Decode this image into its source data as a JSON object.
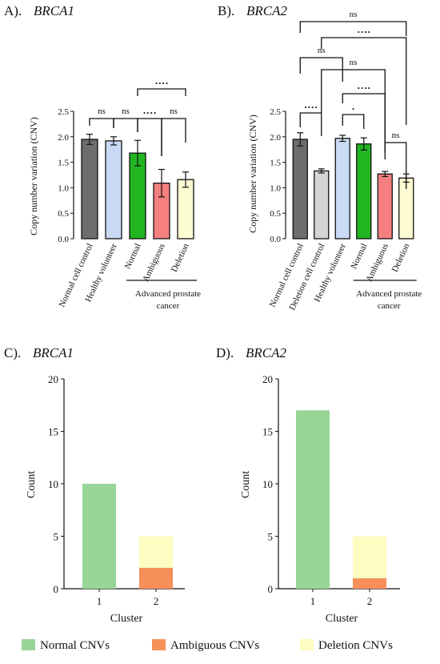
{
  "chart_data": [
    {
      "type": "bar",
      "panel": "A).",
      "gene": "BRCA1",
      "ylabel": "Copy number variation (CNV)",
      "ylim": [
        0,
        2.5
      ],
      "yticks": [
        "0.0",
        "0.5",
        "1.0",
        "1.5",
        "2.0",
        "2.5"
      ],
      "categories": [
        "Normal cell control",
        "Healthy volunteer",
        "Normal",
        "Ambiguous",
        "Deletion"
      ],
      "values": [
        1.95,
        1.92,
        1.68,
        1.09,
        1.16
      ],
      "errors": [
        0.1,
        0.08,
        0.25,
        0.27,
        0.15
      ],
      "colors": [
        "#6d6d6d",
        "#c9daf5",
        "#22b522",
        "#f57f7f",
        "#fdfbd1"
      ],
      "group_label": [
        "Advanced prostate",
        "cancer"
      ],
      "group_range": [
        2,
        4
      ],
      "annotations": [
        {
          "from": 0,
          "to": 1,
          "label": "ns"
        },
        {
          "from": 1,
          "to": 2,
          "label": "ns"
        },
        {
          "from": 2,
          "to": 3,
          "label": "····"
        },
        {
          "from": 3,
          "to": 4,
          "label": "ns"
        },
        {
          "from": 2,
          "to": 4,
          "label": "····"
        }
      ]
    },
    {
      "type": "bar",
      "panel": "B).",
      "gene": "BRCA2",
      "ylabel": "Copy number variation (CNV)",
      "ylim": [
        0,
        2.5
      ],
      "yticks": [
        "0.0",
        "0.5",
        "1.0",
        "1.5",
        "2.0",
        "2.5"
      ],
      "categories": [
        "Normal cell control",
        "Deletion cell control",
        "Healthy volunteer",
        "Normal",
        "Ambiguous",
        "Deletion"
      ],
      "values": [
        1.95,
        1.33,
        1.97,
        1.86,
        1.27,
        1.19
      ],
      "errors": [
        0.13,
        0.04,
        0.06,
        0.12,
        0.05,
        0.08
      ],
      "colors": [
        "#6d6d6d",
        "#d4d4d4",
        "#c9daf5",
        "#22b522",
        "#f57f7f",
        "#fdfbd1"
      ],
      "group_label": [
        "Advanced prostate",
        "cancer"
      ],
      "group_range": [
        3,
        5
      ],
      "annotations": [
        {
          "from": 0,
          "to": 1,
          "label": "····"
        },
        {
          "from": 2,
          "to": 3,
          "label": "·"
        },
        {
          "from": 4,
          "to": 5,
          "label": "ns"
        },
        {
          "from": 2,
          "to": 4,
          "label": "····"
        },
        {
          "from": 1,
          "to": 4,
          "label": "ns"
        },
        {
          "from": 0,
          "to": 2,
          "label": "ns"
        },
        {
          "from": 1,
          "to": 5,
          "label": "····"
        },
        {
          "from": 0,
          "to": 5,
          "label": "ns"
        }
      ]
    },
    {
      "type": "bar",
      "stacked": true,
      "panel": "C).",
      "gene": "BRCA1",
      "xlabel": "Cluster",
      "ylabel": "Count",
      "ylim": [
        0,
        20
      ],
      "yticks": [
        "0",
        "5",
        "10",
        "15",
        "20"
      ],
      "categories": [
        "1",
        "2"
      ],
      "series": [
        {
          "name": "Normal CNVs",
          "values": [
            10,
            0
          ],
          "color": "#98d596"
        },
        {
          "name": "Ambiguous CNVs",
          "values": [
            0,
            2
          ],
          "color": "#f7905a"
        },
        {
          "name": "Deletion CNVs",
          "values": [
            0,
            3
          ],
          "color": "#fdfcc1"
        }
      ]
    },
    {
      "type": "bar",
      "stacked": true,
      "panel": "D).",
      "gene": "BRCA2",
      "xlabel": "Cluster",
      "ylabel": "Count",
      "ylim": [
        0,
        20
      ],
      "yticks": [
        "0",
        "5",
        "10",
        "15",
        "20"
      ],
      "categories": [
        "1",
        "2"
      ],
      "series": [
        {
          "name": "Normal CNVs",
          "values": [
            17,
            0
          ],
          "color": "#98d596"
        },
        {
          "name": "Ambiguous CNVs",
          "values": [
            0,
            1
          ],
          "color": "#f7905a"
        },
        {
          "name": "Deletion CNVs",
          "values": [
            0,
            4
          ],
          "color": "#fdfcc1"
        }
      ]
    }
  ],
  "legend": [
    {
      "label": "Normal CNVs",
      "color": "#98d596"
    },
    {
      "label": "Ambiguous CNVs",
      "color": "#f7905a"
    },
    {
      "label": "Deletion CNVs",
      "color": "#fdfcc1"
    }
  ]
}
